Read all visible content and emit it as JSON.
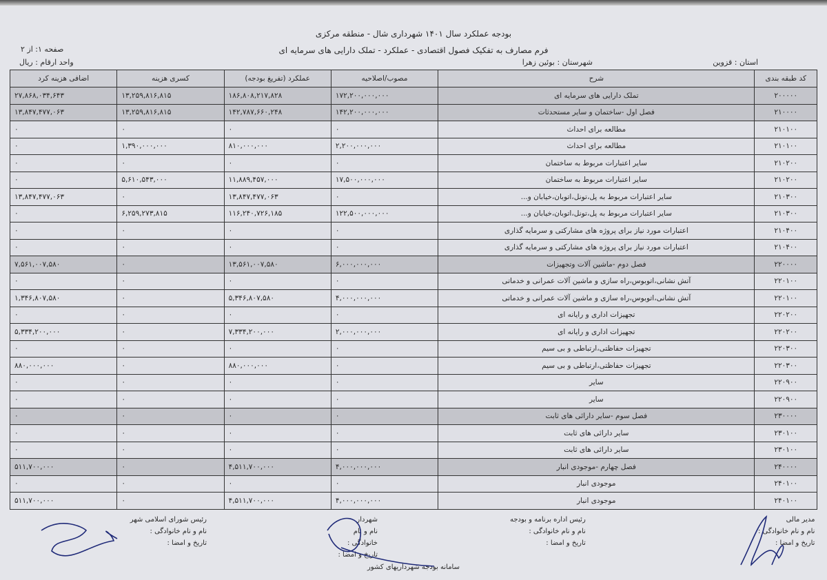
{
  "header": {
    "title": "بودجه عملکرد سال ۱۴۰۱ شهرداری شال - منطقه مرکزی",
    "subtitle": "فرم مصارف به تفکیک فصول اقتصادی - عملکرد - تملک دارایی های سرمایه ای",
    "page": "صفحه ۱: از ۲",
    "unit": "واحد ارقام : ریال",
    "province": "استان : قزوین",
    "county": "شهرستان : بوئین زهرا"
  },
  "table": {
    "columns": [
      "کد طبقه بندی",
      "شرح",
      "مصوب/اصلاحیه",
      "عملکرد (تفریغ بودجه)",
      "کسری هزینه",
      "اضافی هزینه کرد"
    ],
    "rows": [
      {
        "code": "۲۰۰۰۰۰",
        "desc": "تملک دارایی های سرمایه ای",
        "approved": "۱۷۲,۲۰۰,۰۰۰,۰۰۰",
        "actual": "۱۸۶,۸۰۸,۲۱۷,۸۲۸",
        "deficit": "۱۳,۲۵۹,۸۱۶,۸۱۵",
        "surplus": "۲۷,۸۶۸,۰۳۴,۶۴۳",
        "shaded": true
      },
      {
        "code": "۲۱۰۰۰۰",
        "desc": "فصل اول -ساختمان و سایر مستحدثات",
        "approved": "۱۴۲,۲۰۰,۰۰۰,۰۰۰",
        "actual": "۱۴۲,۷۸۷,۶۶۰,۲۴۸",
        "deficit": "۱۳,۲۵۹,۸۱۶,۸۱۵",
        "surplus": "۱۳,۸۴۷,۴۷۷,۰۶۳",
        "shaded": true
      },
      {
        "code": "۲۱۰۱۰۰",
        "desc": "مطالعه برای احداث",
        "approved": "۰",
        "actual": "۰",
        "deficit": "۰",
        "surplus": "۰"
      },
      {
        "code": "۲۱۰۱۰۰",
        "desc": "مطالعه برای احداث",
        "approved": "۲,۲۰۰,۰۰۰,۰۰۰",
        "actual": "۸۱۰,۰۰۰,۰۰۰",
        "deficit": "۱,۳۹۰,۰۰۰,۰۰۰",
        "surplus": "۰"
      },
      {
        "code": "۲۱۰۲۰۰",
        "desc": "سایر اعتبارات مربوط به ساختمان",
        "approved": "۰",
        "actual": "۰",
        "deficit": "۰",
        "surplus": "۰"
      },
      {
        "code": "۲۱۰۲۰۰",
        "desc": "سایر اعتبارات مربوط به ساختمان",
        "approved": "۱۷,۵۰۰,۰۰۰,۰۰۰",
        "actual": "۱۱,۸۸۹,۴۵۷,۰۰۰",
        "deficit": "۵,۶۱۰,۵۴۳,۰۰۰",
        "surplus": "۰"
      },
      {
        "code": "۲۱۰۳۰۰",
        "desc": "سایر اعتبارات مربوط به پل،تونل،اتوبان،خیابان و...",
        "approved": "۰",
        "actual": "۱۳,۸۴۷,۴۷۷,۰۶۳",
        "deficit": "۰",
        "surplus": "۱۳,۸۴۷,۴۷۷,۰۶۳"
      },
      {
        "code": "۲۱۰۳۰۰",
        "desc": "سایر اعتبارات مربوط به پل،تونل،اتوبان،خیابان و...",
        "approved": "۱۲۲,۵۰۰,۰۰۰,۰۰۰",
        "actual": "۱۱۶,۲۴۰,۷۲۶,۱۸۵",
        "deficit": "۶,۲۵۹,۲۷۳,۸۱۵",
        "surplus": "۰"
      },
      {
        "code": "۲۱۰۴۰۰",
        "desc": "اعتبارات مورد نیاز برای پروژه های مشارکتی و سرمایه گذاری",
        "approved": "۰",
        "actual": "۰",
        "deficit": "۰",
        "surplus": "۰"
      },
      {
        "code": "۲۱۰۴۰۰",
        "desc": "اعتبارات مورد نیاز برای پروژه های مشارکتی و سرمایه گذاری",
        "approved": "۰",
        "actual": "۰",
        "deficit": "۰",
        "surplus": "۰"
      },
      {
        "code": "۲۲۰۰۰۰",
        "desc": "فصل دوم -ماشین آلات وتجهیزات",
        "approved": "۶,۰۰۰,۰۰۰,۰۰۰",
        "actual": "۱۳,۵۶۱,۰۰۷,۵۸۰",
        "deficit": "۰",
        "surplus": "۷,۵۶۱,۰۰۷,۵۸۰",
        "shaded": true
      },
      {
        "code": "۲۲۰۱۰۰",
        "desc": "آتش نشانی،اتوبوس،راه سازی و ماشین آلات عمرانی و خدماتی",
        "approved": "۰",
        "actual": "۰",
        "deficit": "۰",
        "surplus": "۰"
      },
      {
        "code": "۲۲۰۱۰۰",
        "desc": "آتش نشانی،اتوبوس،راه سازی و ماشین آلات عمرانی و خدماتی",
        "approved": "۴,۰۰۰,۰۰۰,۰۰۰",
        "actual": "۵,۳۴۶,۸۰۷,۵۸۰",
        "deficit": "۰",
        "surplus": "۱,۳۴۶,۸۰۷,۵۸۰"
      },
      {
        "code": "۲۲۰۲۰۰",
        "desc": "تجهیزات اداری و رایانه ای",
        "approved": "۰",
        "actual": "۰",
        "deficit": "۰",
        "surplus": "۰"
      },
      {
        "code": "۲۲۰۲۰۰",
        "desc": "تجهیزات اداری و رایانه ای",
        "approved": "۲,۰۰۰,۰۰۰,۰۰۰",
        "actual": "۷,۳۳۴,۲۰۰,۰۰۰",
        "deficit": "۰",
        "surplus": "۵,۳۳۴,۲۰۰,۰۰۰"
      },
      {
        "code": "۲۲۰۳۰۰",
        "desc": "تجهیزات حفاظتی،ارتباطی و بی سیم",
        "approved": "۰",
        "actual": "۰",
        "deficit": "۰",
        "surplus": "۰"
      },
      {
        "code": "۲۲۰۳۰۰",
        "desc": "تجهیزات حفاظتی،ارتباطی و بی سیم",
        "approved": "۰",
        "actual": "۸۸۰,۰۰۰,۰۰۰",
        "deficit": "۰",
        "surplus": "۸۸۰,۰۰۰,۰۰۰"
      },
      {
        "code": "۲۲۰۹۰۰",
        "desc": "سایر",
        "approved": "۰",
        "actual": "۰",
        "deficit": "۰",
        "surplus": "۰"
      },
      {
        "code": "۲۲۰۹۰۰",
        "desc": "سایر",
        "approved": "۰",
        "actual": "۰",
        "deficit": "۰",
        "surplus": "۰"
      },
      {
        "code": "۲۳۰۰۰۰",
        "desc": "فصل سوم -سایر دارائی های ثابت",
        "approved": "۰",
        "actual": "۰",
        "deficit": "۰",
        "surplus": "۰",
        "shaded": true
      },
      {
        "code": "۲۳۰۱۰۰",
        "desc": "سایر دارائی های ثابت",
        "approved": "۰",
        "actual": "۰",
        "deficit": "۰",
        "surplus": "۰"
      },
      {
        "code": "۲۳۰۱۰۰",
        "desc": "سایر دارائی های ثابت",
        "approved": "۰",
        "actual": "۰",
        "deficit": "۰",
        "surplus": "۰"
      },
      {
        "code": "۲۴۰۰۰۰",
        "desc": "فصل چهارم -موجودی انبار",
        "approved": "۴,۰۰۰,۰۰۰,۰۰۰",
        "actual": "۴,۵۱۱,۷۰۰,۰۰۰",
        "deficit": "۰",
        "surplus": "۵۱۱,۷۰۰,۰۰۰",
        "shaded": true
      },
      {
        "code": "۲۴۰۱۰۰",
        "desc": "موجودی انبار",
        "approved": "۰",
        "actual": "۰",
        "deficit": "۰",
        "surplus": "۰"
      },
      {
        "code": "۲۴۰۱۰۰",
        "desc": "موجودی انبار",
        "approved": "۴,۰۰۰,۰۰۰,۰۰۰",
        "actual": "۴,۵۱۱,۷۰۰,۰۰۰",
        "deficit": "۰",
        "surplus": "۵۱۱,۷۰۰,۰۰۰"
      }
    ]
  },
  "signatures": {
    "finance_manager": {
      "title": "مدیر مالی",
      "name": "نام و نام خانوادگی :",
      "date": "تاریخ و امضا :"
    },
    "budget_head": {
      "title": "رئیس اداره برنامه و بودجه",
      "name": "نام و نام خانوادگی :",
      "date": "تاریخ و امضا :"
    },
    "mayor": {
      "title": "شهردار",
      "name": "نام و نام خانوادگی :",
      "date": "تاریخ و امضا :"
    },
    "council_head": {
      "title": "رئیس شورای اسلامی شهر",
      "name": "نام و نام خانوادگی :",
      "date": "تاریخ و امضا :"
    }
  },
  "footer": {
    "system": "سامانه بودجه شهرداریهای کشور"
  },
  "colors": {
    "ink": "#2a2a2a",
    "shaded_row": "#c4c5cb",
    "signature_ink": "#1f2a78"
  }
}
